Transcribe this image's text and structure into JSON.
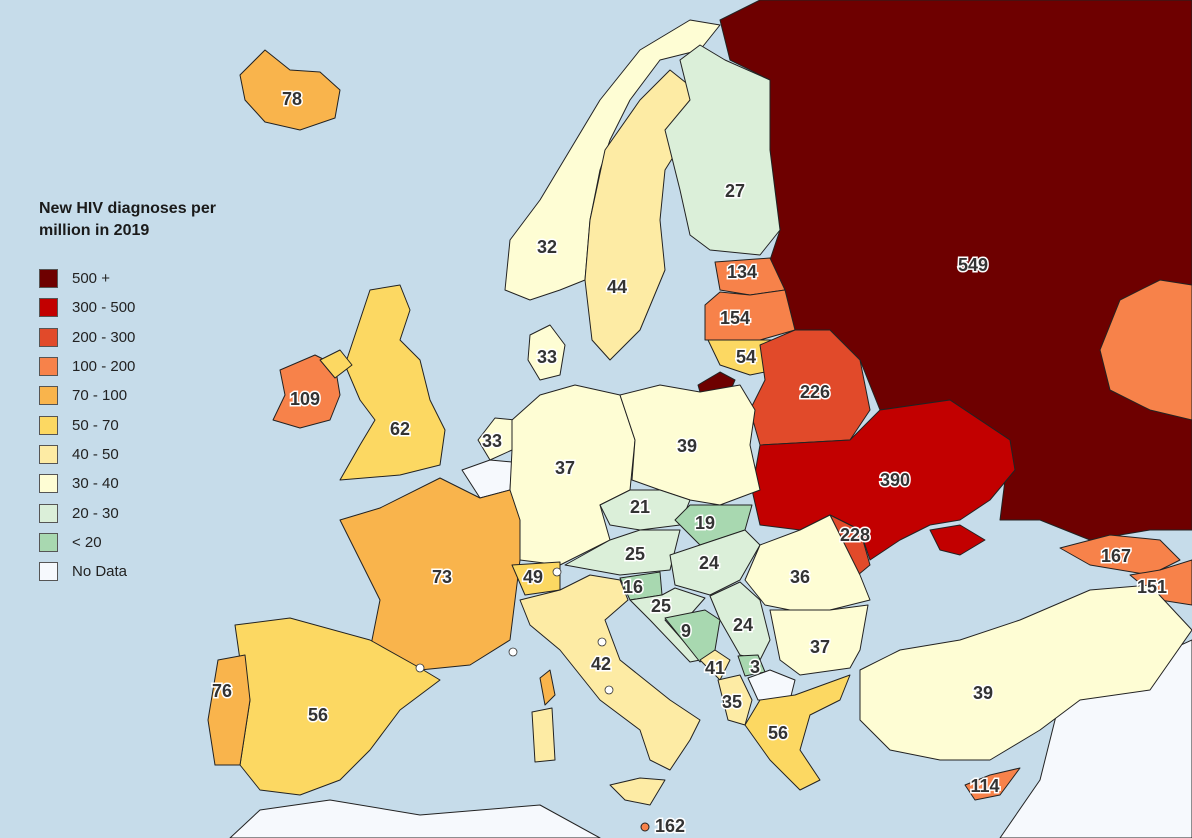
{
  "legend": {
    "title_line1": "New HIV diagnoses per",
    "title_line2": "million in 2019",
    "items": [
      {
        "label": "500 +",
        "color": "#6e0000"
      },
      {
        "label": "300 - 500",
        "color": "#c20000"
      },
      {
        "label": "200 - 300",
        "color": "#e14a2a"
      },
      {
        "label": "100 - 200",
        "color": "#f7824a"
      },
      {
        "label": "70 - 100",
        "color": "#f9b44c"
      },
      {
        "label": "50 - 70",
        "color": "#fcd862"
      },
      {
        "label": "40 - 50",
        "color": "#fdeba4"
      },
      {
        "label": "30 - 40",
        "color": "#fefdd4"
      },
      {
        "label": "20 - 30",
        "color": "#dbefd9"
      },
      {
        "label": "< 20",
        "color": "#a8d8b0"
      },
      {
        "label": "No Data",
        "color": "#f6f9fd"
      }
    ]
  },
  "sea_color": "#c6dcea",
  "values": {
    "iceland": "78",
    "norway": "32",
    "sweden": "44",
    "finland": "27",
    "russia": "549",
    "estonia": "134",
    "latvia": "154",
    "lithuania": "54",
    "belarus": "226",
    "ukraine": "390",
    "moldova": "228",
    "georgia": "167",
    "armenia": "151",
    "ireland": "109",
    "uk": "62",
    "denmark": "33",
    "netherlands": "33",
    "germany": "37",
    "poland": "39",
    "czechia": "21",
    "slovakia": "19",
    "austria": "25",
    "hungary": "24",
    "slovenia": "16",
    "croatia": "25",
    "bosnia": "9",
    "serbia": "24",
    "montenegro": "41",
    "kosovo": "3",
    "albania": "35",
    "romania": "36",
    "bulgaria": "37",
    "greece": "56",
    "turkey": "39",
    "cyprus": "114",
    "switzerland": "49",
    "france": "73",
    "italy": "42",
    "spain": "56",
    "portugal": "76",
    "malta": "162"
  }
}
